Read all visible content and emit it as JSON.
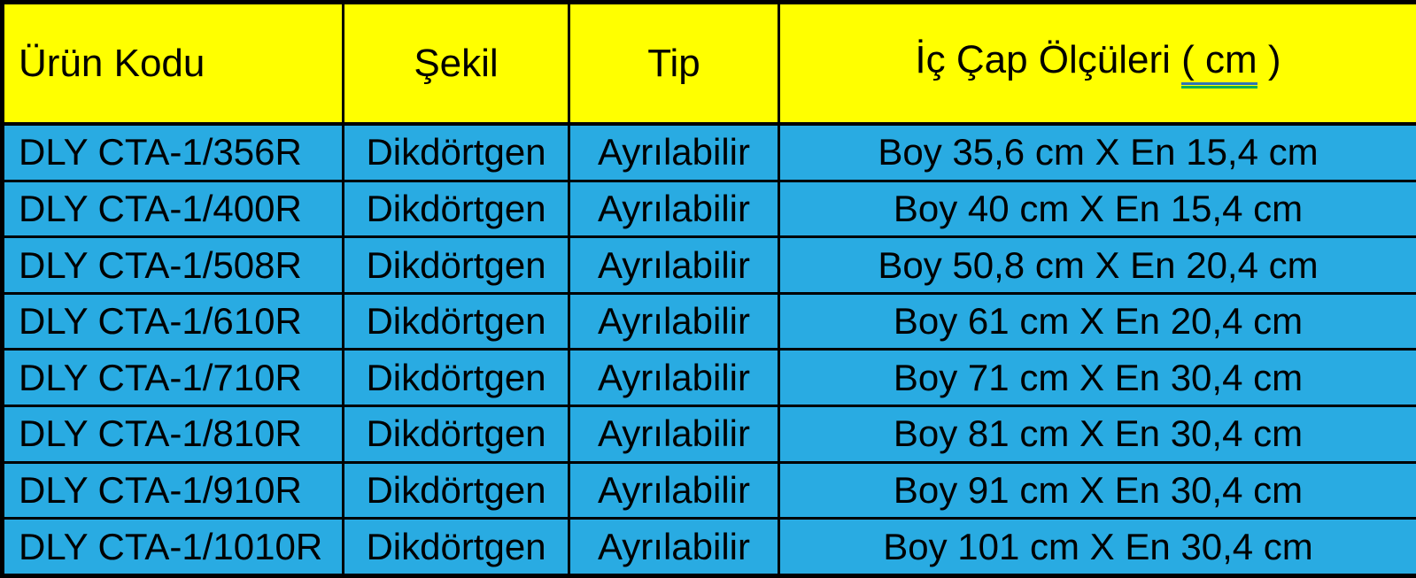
{
  "table": {
    "headers": {
      "product_code": "Ürün Kodu",
      "shape": "Şekil",
      "type": "Tip",
      "dimensions_prefix": "İç Çap Ölçüleri ",
      "dimensions_underlined": "( cm",
      "dimensions_suffix": " )"
    },
    "rows": [
      {
        "code": "DLY CTA-1/356R",
        "shape": "Dikdörtgen",
        "type": "Ayrılabilir",
        "dimensions": "Boy 35,6 cm X En 15,4 cm"
      },
      {
        "code": "DLY CTA-1/400R",
        "shape": "Dikdörtgen",
        "type": "Ayrılabilir",
        "dimensions": "Boy 40 cm X En 15,4 cm"
      },
      {
        "code": "DLY CTA-1/508R",
        "shape": "Dikdörtgen",
        "type": "Ayrılabilir",
        "dimensions": "Boy 50,8 cm X En 20,4 cm"
      },
      {
        "code": "DLY CTA-1/610R",
        "shape": "Dikdörtgen",
        "type": "Ayrılabilir",
        "dimensions": "Boy 61 cm X En 20,4 cm"
      },
      {
        "code": "DLY CTA-1/710R",
        "shape": "Dikdörtgen",
        "type": "Ayrılabilir",
        "dimensions": "Boy 71 cm X En 30,4 cm"
      },
      {
        "code": "DLY CTA-1/810R",
        "shape": "Dikdörtgen",
        "type": "Ayrılabilir",
        "dimensions": "Boy 81 cm X En 30,4 cm"
      },
      {
        "code": "DLY CTA-1/910R",
        "shape": "Dikdörtgen",
        "type": "Ayrılabilir",
        "dimensions": "Boy 91 cm X En 30,4 cm"
      },
      {
        "code": "DLY CTA-1/1010R",
        "shape": "Dikdörtgen",
        "type": "Ayrılabilir",
        "dimensions": "Boy 101 cm X En 30,4 cm"
      }
    ]
  },
  "colors": {
    "header_bg": "#FFFF00",
    "row_bg": "#29ABE2",
    "border": "#000000",
    "underline_blue": "#2E75B6",
    "underline_green": "#00B050"
  }
}
